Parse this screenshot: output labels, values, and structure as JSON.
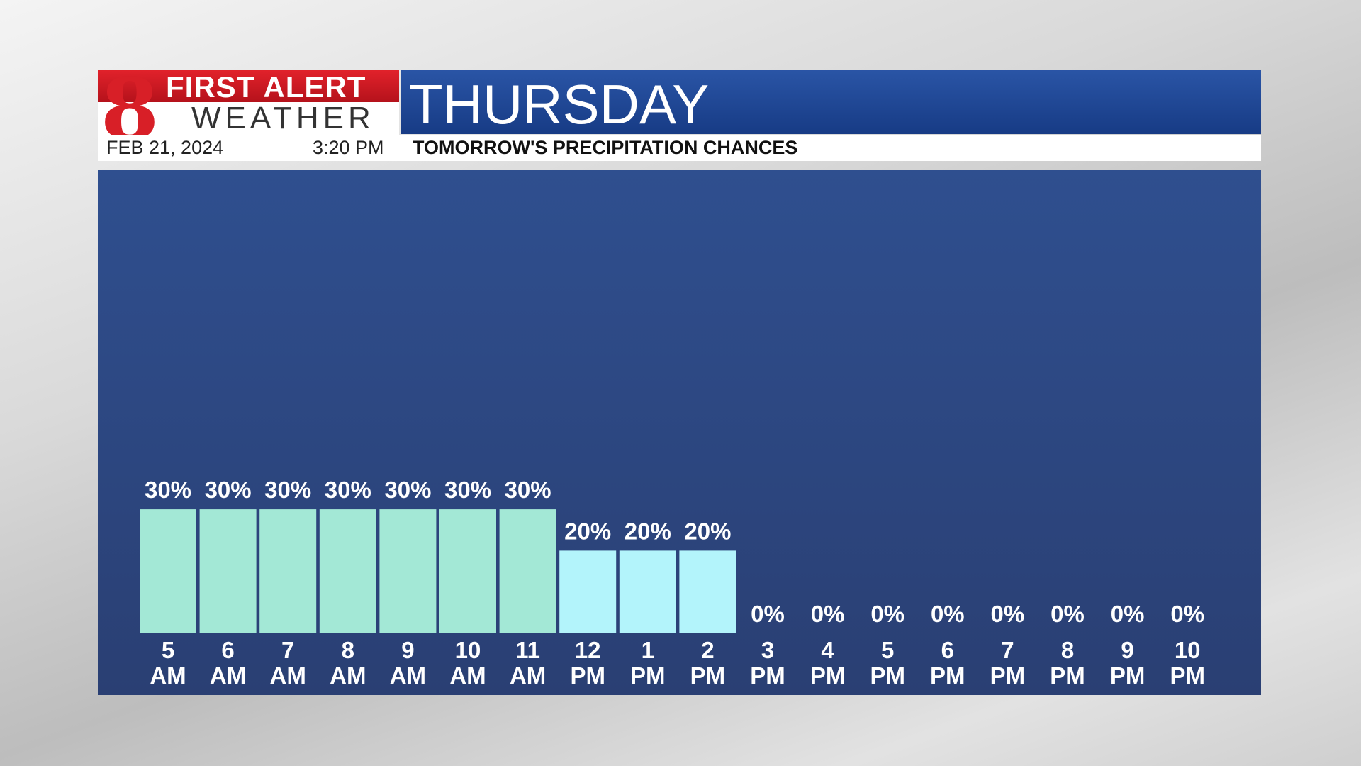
{
  "header": {
    "logo_number": "8",
    "brand_top": "FIRST ALERT",
    "brand_bottom": "WEATHER",
    "date": "FEB 21, 2024",
    "time": "3:20 PM",
    "title": "THURSDAY",
    "subtitle": "TOMORROW'S PRECIPITATION CHANCES"
  },
  "chart_data": {
    "type": "bar",
    "categories": [
      "5 AM",
      "6 AM",
      "7 AM",
      "8 AM",
      "9 AM",
      "10 AM",
      "11 AM",
      "12 PM",
      "1 PM",
      "2 PM",
      "3 PM",
      "4 PM",
      "5 PM",
      "6 PM",
      "7 PM",
      "8 PM",
      "9 PM",
      "10 PM"
    ],
    "values": [
      30,
      30,
      30,
      30,
      30,
      30,
      30,
      20,
      20,
      20,
      0,
      0,
      0,
      0,
      0,
      0,
      0,
      0
    ],
    "value_labels": [
      "30%",
      "30%",
      "30%",
      "30%",
      "30%",
      "30%",
      "30%",
      "20%",
      "20%",
      "20%",
      "0%",
      "0%",
      "0%",
      "0%",
      "0%",
      "0%",
      "0%",
      "0%"
    ],
    "colors": [
      "#a3e8d6",
      "#a3e8d6",
      "#a3e8d6",
      "#a3e8d6",
      "#a3e8d6",
      "#a3e8d6",
      "#a3e8d6",
      "#b3f4fb",
      "#b3f4fb",
      "#b3f4fb",
      "#b3f4fb",
      "#b3f4fb",
      "#b3f4fb",
      "#b3f4fb",
      "#b3f4fb",
      "#b3f4fb",
      "#b3f4fb",
      "#b3f4fb"
    ],
    "ylim": [
      0,
      100
    ]
  }
}
